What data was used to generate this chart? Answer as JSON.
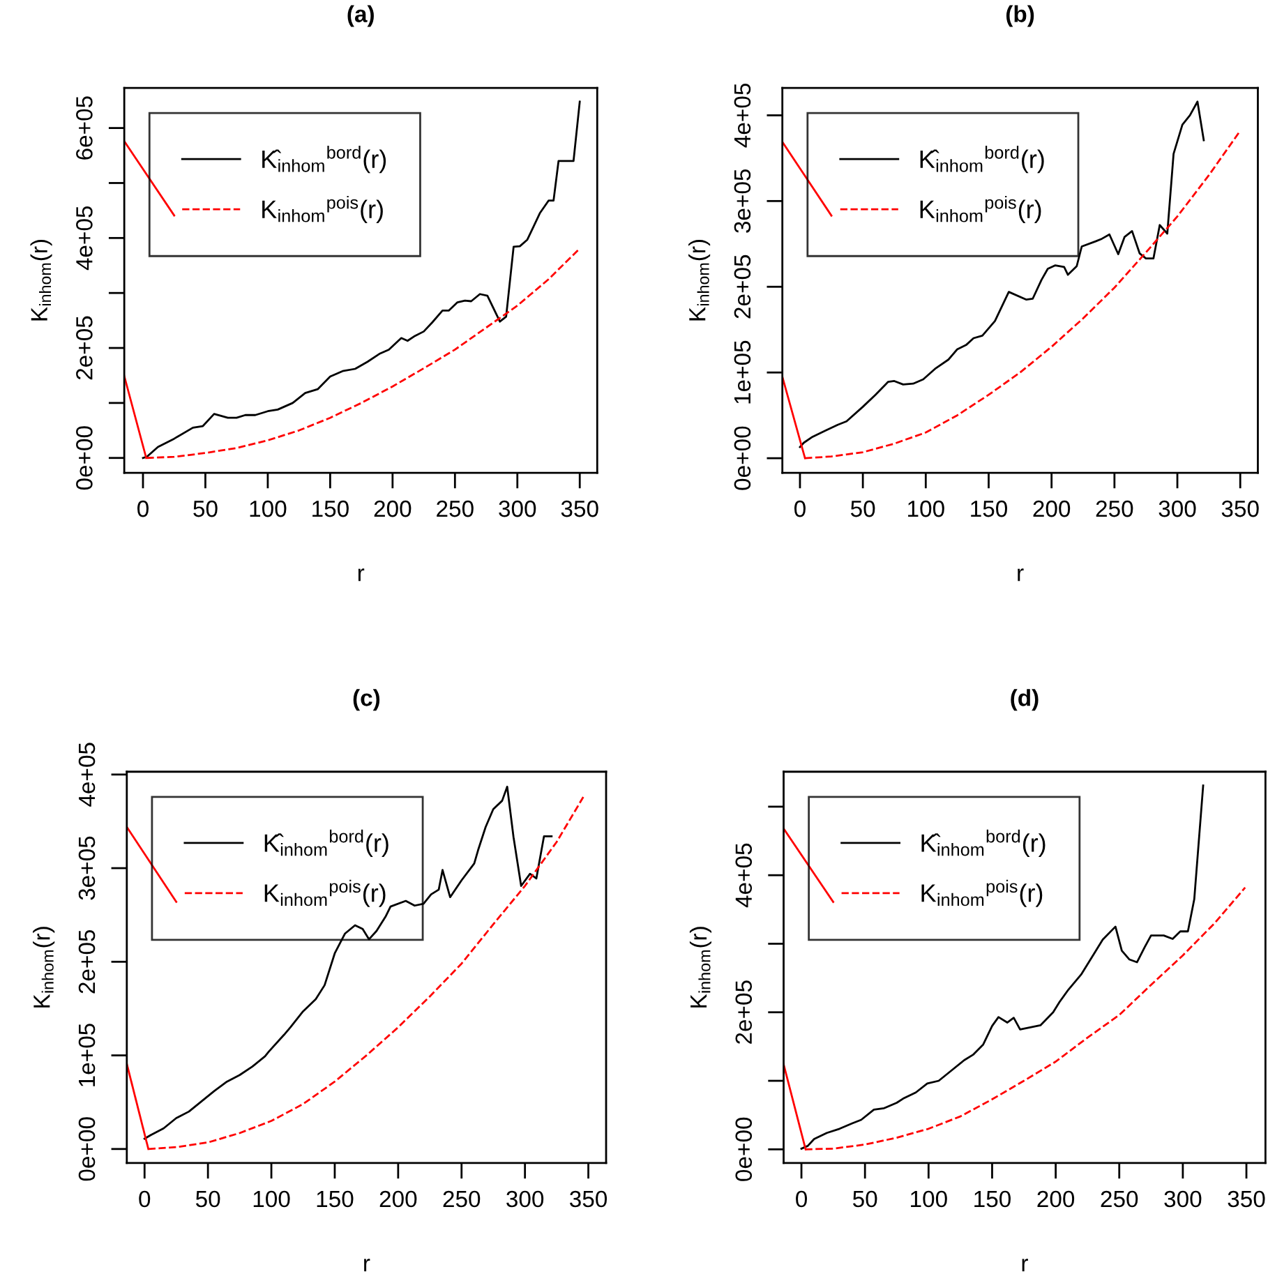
{
  "chart_data": [
    {
      "type": "line",
      "title": "(a)",
      "xlabel": "r",
      "ylabel": "K$_{inhom}$(r)",
      "legend": "top left",
      "xlim": [
        -15,
        364
      ],
      "xticks": [
        0,
        50,
        100,
        150,
        200,
        250,
        300,
        350
      ],
      "ylim": [
        -27000,
        673000
      ],
      "yticks": [
        {
          "value": 0,
          "label": "0e+00"
        },
        {
          "value": 100000,
          "label": null
        },
        {
          "value": 200000,
          "label": "2e+05"
        },
        {
          "value": 300000,
          "label": null
        },
        {
          "value": 400000,
          "label": "4e+05"
        },
        {
          "value": 500000,
          "label": null
        },
        {
          "value": 600000,
          "label": "6e+05"
        }
      ],
      "series": [
        {
          "name": "K̂$_{inhom}$$^{bord}$(r)",
          "color": "#000000",
          "line_style": "solid",
          "x": [
            0,
            3,
            12,
            25,
            40,
            48,
            57,
            68,
            75,
            82,
            90,
            100,
            108,
            120,
            130,
            140,
            150,
            160,
            170,
            180,
            190,
            197,
            207,
            212,
            218,
            225,
            232,
            240,
            245,
            252,
            258,
            263,
            270,
            276,
            286,
            291,
            297,
            302,
            308,
            318,
            325,
            329,
            333,
            345,
            350
          ],
          "values": [
            0,
            2000,
            20000,
            35000,
            55000,
            58000,
            80000,
            73000,
            73000,
            78000,
            78000,
            85000,
            88000,
            100000,
            118000,
            125000,
            148000,
            158000,
            162000,
            175000,
            190000,
            197000,
            218000,
            213000,
            222000,
            230000,
            247000,
            268000,
            268000,
            283000,
            286000,
            285000,
            298000,
            295000,
            248000,
            257000,
            384000,
            385000,
            397000,
            445000,
            468000,
            468000,
            540000,
            540000,
            648000
          ]
        },
        {
          "name": "K$_{inhom}$$^{pois}$(r)",
          "color": "#ff0000",
          "line_style": "dashed",
          "x": [
            3,
            25,
            50,
            75,
            100,
            125,
            150,
            175,
            200,
            225,
            250,
            275,
            300,
            325,
            350
          ],
          "values": [
            0,
            2000,
            9000,
            18000,
            32000,
            50000,
            73000,
            100000,
            130000,
            163000,
            197000,
            237000,
            277000,
            325000,
            381000
          ]
        },
        {
          "color": "#ff0000",
          "line_style": "solid",
          "x": [
            -15,
            25
          ],
          "values": [
            576000,
            441000
          ]
        },
        {
          "color": "#ff0000",
          "line_style": "solid",
          "x": [
            -15,
            2.6
          ],
          "values": [
            149000,
            0
          ]
        }
      ]
    },
    {
      "type": "line",
      "title": "(b)",
      "xlabel": "r",
      "ylabel": "K$_{inhom}$(r)",
      "legend": "top left",
      "xlim": [
        -14,
        364
      ],
      "xticks": [
        0,
        50,
        100,
        150,
        200,
        250,
        300,
        350
      ],
      "ylim": [
        -17000,
        432000
      ],
      "yticks": [
        {
          "value": 0,
          "label": "0e+00"
        },
        {
          "value": 100000,
          "label": "1e+05"
        },
        {
          "value": 200000,
          "label": "2e+05"
        },
        {
          "value": 300000,
          "label": "3e+05"
        },
        {
          "value": 400000,
          "label": "4e+05"
        }
      ],
      "series": [
        {
          "name": "K̂$_{inhom}$$^{bord}$(r)",
          "color": "#000000",
          "line_style": "solid",
          "x": [
            0,
            3,
            10,
            20,
            30,
            37,
            50,
            60,
            70,
            75,
            82,
            90,
            98,
            108,
            118,
            125,
            132,
            138,
            145,
            155,
            166,
            180,
            185,
            192,
            197,
            203,
            210,
            213,
            220,
            224,
            235,
            240,
            246,
            253,
            258,
            264,
            270,
            275,
            281,
            286,
            292,
            297,
            304,
            310,
            316,
            321
          ],
          "values": [
            13000,
            18000,
            25000,
            32000,
            39000,
            43000,
            60000,
            74000,
            89000,
            90000,
            86000,
            87000,
            92000,
            105000,
            115000,
            127000,
            132000,
            140000,
            143000,
            160000,
            194000,
            185000,
            186000,
            208000,
            221000,
            225000,
            223000,
            214000,
            224000,
            247000,
            253000,
            256000,
            261000,
            238000,
            258000,
            265000,
            239000,
            233000,
            233000,
            272000,
            262000,
            355000,
            389000,
            400000,
            416000,
            371000
          ]
        },
        {
          "name": "K$_{inhom}$$^{pois}$(r)",
          "color": "#ff0000",
          "line_style": "dashed",
          "x": [
            4,
            25,
            50,
            75,
            100,
            125,
            150,
            175,
            200,
            225,
            250,
            275,
            300,
            325,
            350
          ],
          "values": [
            0,
            2000,
            7000,
            17000,
            30000,
            50000,
            74000,
            100000,
            130000,
            163000,
            199000,
            240000,
            282000,
            330000,
            382000
          ]
        },
        {
          "color": "#ff0000",
          "line_style": "solid",
          "x": [
            -14,
            25
          ],
          "values": [
            369000,
            283000
          ]
        },
        {
          "color": "#ff0000",
          "line_style": "solid",
          "x": [
            -14,
            4
          ],
          "values": [
            95000,
            0
          ]
        }
      ]
    },
    {
      "type": "line",
      "title": "(c)",
      "xlabel": "r",
      "ylabel": "K$_{inhom}$(r)",
      "legend": "top left",
      "xlim": [
        -14,
        364
      ],
      "xticks": [
        0,
        50,
        100,
        150,
        200,
        250,
        300,
        350
      ],
      "ylim": [
        -15000,
        403000
      ],
      "yticks": [
        {
          "value": 0,
          "label": "0e+00"
        },
        {
          "value": 100000,
          "label": "1e+05"
        },
        {
          "value": 200000,
          "label": "2e+05"
        },
        {
          "value": 300000,
          "label": "3e+05"
        },
        {
          "value": 400000,
          "label": "4e+05"
        }
      ],
      "series": [
        {
          "name": "K̂$_{inhom}$$^{bord}$(r)",
          "color": "#000000",
          "line_style": "solid",
          "x": [
            0,
            5,
            15,
            25,
            35,
            45,
            55,
            65,
            75,
            85,
            95,
            98,
            110,
            115,
            125,
            135,
            142,
            150,
            158,
            166,
            172,
            177,
            183,
            190,
            194,
            206,
            213,
            220,
            226,
            232,
            235,
            241,
            250,
            260,
            263,
            269,
            275,
            282,
            286,
            291,
            297,
            304,
            309,
            315,
            321
          ],
          "values": [
            11000,
            15000,
            22000,
            33000,
            40000,
            51000,
            62000,
            72000,
            79000,
            88000,
            99000,
            104000,
            122000,
            130000,
            147000,
            160000,
            175000,
            209000,
            230000,
            239000,
            235000,
            224000,
            233000,
            248000,
            259000,
            265000,
            260000,
            262000,
            272000,
            277000,
            298000,
            269000,
            287000,
            305000,
            319000,
            344000,
            363000,
            372000,
            387000,
            333000,
            281000,
            294000,
            289000,
            334000,
            334000
          ]
        },
        {
          "name": "K$_{inhom}$$^{pois}$(r)",
          "color": "#ff0000",
          "line_style": "dashed",
          "x": [
            3,
            25,
            50,
            75,
            100,
            125,
            150,
            175,
            200,
            225,
            250,
            275,
            300,
            325,
            346
          ],
          "values": [
            0,
            2000,
            7000,
            17000,
            30000,
            48000,
            72000,
            100000,
            130000,
            163000,
            198000,
            240000,
            281000,
            328000,
            376000
          ]
        },
        {
          "color": "#ff0000",
          "line_style": "solid",
          "x": [
            -14,
            25
          ],
          "values": [
            344000,
            264000
          ]
        },
        {
          "color": "#ff0000",
          "line_style": "solid",
          "x": [
            -14,
            3
          ],
          "values": [
            91000,
            0
          ]
        }
      ]
    },
    {
      "type": "line",
      "title": "(d)",
      "xlabel": "r",
      "ylabel": "K$_{inhom}$(r)",
      "legend": "top left",
      "xlim": [
        -14,
        365
      ],
      "xticks": [
        0,
        50,
        100,
        150,
        200,
        250,
        300,
        350
      ],
      "ylim": [
        -20000,
        551000
      ],
      "yticks": [
        {
          "value": 0,
          "label": "0e+00"
        },
        {
          "value": 100000,
          "label": null
        },
        {
          "value": 200000,
          "label": "2e+05"
        },
        {
          "value": 300000,
          "label": null
        },
        {
          "value": 400000,
          "label": "4e+05"
        },
        {
          "value": 500000,
          "label": null
        }
      ],
      "series": [
        {
          "name": "K̂$_{inhom}$$^{bord}$(r)",
          "color": "#000000",
          "line_style": "solid",
          "x": [
            0,
            5,
            10,
            20,
            30,
            40,
            47,
            57,
            65,
            75,
            80,
            90,
            99,
            108,
            118,
            128,
            135,
            143,
            150,
            155,
            162,
            167,
            172,
            188,
            198,
            203,
            210,
            220,
            230,
            237,
            247,
            252,
            258,
            264,
            270,
            275,
            285,
            292,
            298,
            304,
            309,
            316
          ],
          "values": [
            1000,
            5000,
            15000,
            24000,
            30000,
            38000,
            43000,
            58000,
            60000,
            68000,
            74000,
            83000,
            96000,
            100000,
            115000,
            130000,
            138000,
            153000,
            180000,
            193000,
            185000,
            192000,
            175000,
            181000,
            200000,
            215000,
            233000,
            255000,
            285000,
            306000,
            325000,
            290000,
            277000,
            273000,
            295000,
            312000,
            312000,
            307000,
            318000,
            318000,
            365000,
            531000
          ]
        },
        {
          "name": "K$_{inhom}$$^{pois}$(r)",
          "color": "#ff0000",
          "line_style": "dashed",
          "x": [
            3,
            25,
            50,
            75,
            100,
            125,
            150,
            175,
            200,
            225,
            250,
            275,
            300,
            325,
            349
          ],
          "values": [
            0,
            1000,
            7000,
            17000,
            30000,
            48000,
            73000,
            100000,
            128000,
            163000,
            196000,
            240000,
            283000,
            330000,
            382000
          ]
        },
        {
          "color": "#ff0000",
          "line_style": "solid",
          "x": [
            -14,
            25
          ],
          "values": [
            468000,
            361000
          ]
        },
        {
          "color": "#ff0000",
          "line_style": "solid",
          "x": [
            -14,
            3.3
          ],
          "values": [
            124000,
            0
          ]
        }
      ]
    }
  ]
}
